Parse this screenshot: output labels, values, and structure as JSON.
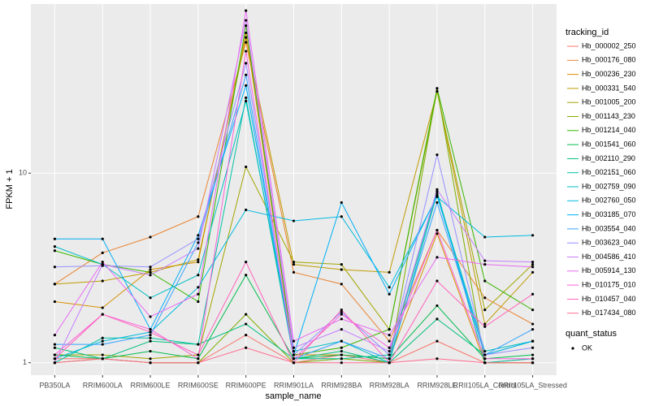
{
  "chart_data": {
    "type": "line",
    "log_y": true,
    "grid": true,
    "x_label": "sample_name",
    "y_label": "FPKM + 1",
    "categories": [
      "PB350LA",
      "RRIM600LA",
      "RRIM600LE",
      "RRIM600SE",
      "RRIM600PE",
      "RRIM901LA",
      "RRIM928BA",
      "RRIM928LA",
      "RRIM928LE",
      "RRII105LA_Control",
      "RRII105LA_Stressed"
    ],
    "ylim": [
      0.86,
      78
    ],
    "yticks": [
      1,
      10
    ],
    "legend_title": "tracking_id",
    "point_legend_title": "quant_status",
    "point_legend_label": "OK",
    "point_color": "#000000",
    "series": [
      {
        "name": "Hb_000002_250",
        "color": "#F8766D",
        "values": [
          1.05,
          1.05,
          1.0,
          1.0,
          1.4,
          1.0,
          1.1,
          1.0,
          1.3,
          1.0,
          1.05
        ]
      },
      {
        "name": "Hb_000176_080",
        "color": "#EA8331",
        "values": [
          2.6,
          3.8,
          4.6,
          5.9,
          49,
          3.0,
          2.6,
          1.3,
          5.0,
          2.2,
          1.6
        ]
      },
      {
        "name": "Hb_000236_230",
        "color": "#D89000",
        "values": [
          2.1,
          1.95,
          3.1,
          3.4,
          55,
          1.1,
          1.1,
          1.05,
          4.8,
          1.0,
          1.0
        ]
      },
      {
        "name": "Hb_000331_540",
        "color": "#C09B00",
        "values": [
          2.6,
          2.7,
          3.0,
          3.5,
          52,
          3.3,
          3.1,
          3.0,
          27,
          1.6,
          3.0
        ]
      },
      {
        "name": "Hb_001005_200",
        "color": "#A3A500",
        "values": [
          1.1,
          1.1,
          1.05,
          1.1,
          10.8,
          3.4,
          3.3,
          1.5,
          27,
          1.9,
          3.3
        ]
      },
      {
        "name": "Hb_001143_230",
        "color": "#7CAE00",
        "values": [
          1.0,
          1.05,
          1.0,
          1.0,
          1.8,
          1.0,
          1.05,
          1.0,
          28,
          1.0,
          1.0
        ]
      },
      {
        "name": "Hb_001214_040",
        "color": "#39B600",
        "values": [
          3.9,
          3.3,
          3.0,
          2.1,
          60,
          1.1,
          1.2,
          1.5,
          28,
          2.7,
          1.9
        ]
      },
      {
        "name": "Hb_001541_060",
        "color": "#00BB4E",
        "values": [
          1.1,
          1.05,
          1.15,
          1.05,
          2.9,
          1.05,
          1.1,
          1.05,
          2.0,
          1.05,
          1.1
        ]
      },
      {
        "name": "Hb_002110_290",
        "color": "#00BF7D",
        "values": [
          1.2,
          1.05,
          1.3,
          1.25,
          1.6,
          1.05,
          1.15,
          1.0,
          1.7,
          1.1,
          1.3
        ]
      },
      {
        "name": "Hb_002151_060",
        "color": "#00C1A3",
        "values": [
          1.0,
          1.35,
          1.35,
          1.25,
          25,
          1.05,
          1.05,
          1.1,
          8.0,
          1.0,
          1.05
        ]
      },
      {
        "name": "Hb_002759_090",
        "color": "#00BFC4",
        "values": [
          4.1,
          3.3,
          2.2,
          2.9,
          24,
          1.15,
          1.3,
          1.0,
          7.8,
          1.15,
          1.3
        ]
      },
      {
        "name": "Hb_002760_050",
        "color": "#00BAE0",
        "values": [
          1.05,
          1.3,
          1.45,
          2.5,
          6.4,
          5.6,
          5.9,
          2.5,
          7.5,
          4.6,
          4.7
        ]
      },
      {
        "name": "Hb_003185_070",
        "color": "#00B0F6",
        "values": [
          4.5,
          4.5,
          1.5,
          4.7,
          29,
          1.1,
          7.0,
          2.3,
          7.6,
          1.1,
          1.3
        ]
      },
      {
        "name": "Hb_003554_040",
        "color": "#35A2FF",
        "values": [
          1.25,
          1.25,
          1.4,
          4.3,
          33,
          1.05,
          1.3,
          1.05,
          7.0,
          1.1,
          1.5
        ]
      },
      {
        "name": "Hb_003623_040",
        "color": "#9590FF",
        "values": [
          3.2,
          3.25,
          3.2,
          4.5,
          38,
          1.1,
          1.85,
          1.1,
          12.5,
          1.1,
          1.2
        ]
      },
      {
        "name": "Hb_004586_410",
        "color": "#C77CFF",
        "values": [
          1.0,
          3.3,
          2.9,
          4.0,
          64,
          1.2,
          1.5,
          1.15,
          8.2,
          3.45,
          3.4
        ]
      },
      {
        "name": "Hb_005914_130",
        "color": "#E76BF3",
        "values": [
          1.4,
          3.4,
          1.75,
          2.3,
          72,
          1.3,
          1.7,
          1.4,
          3.6,
          3.3,
          3.2
        ]
      },
      {
        "name": "Hb_010175_010",
        "color": "#FA62DB",
        "values": [
          1.1,
          1.8,
          1.5,
          1.05,
          44,
          1.05,
          1.8,
          1.2,
          5.0,
          1.05,
          1.05
        ]
      },
      {
        "name": "Hb_010457_040",
        "color": "#FF62BC",
        "values": [
          1.05,
          1.8,
          1.45,
          1.1,
          3.4,
          1.0,
          1.9,
          1.0,
          2.7,
          1.55,
          2.3
        ]
      },
      {
        "name": "Hb_017434_080",
        "color": "#FF6C91",
        "values": [
          1.0,
          1.05,
          1.0,
          1.0,
          1.2,
          1.0,
          1.0,
          1.0,
          1.05,
          1.0,
          1.0
        ]
      }
    ]
  }
}
